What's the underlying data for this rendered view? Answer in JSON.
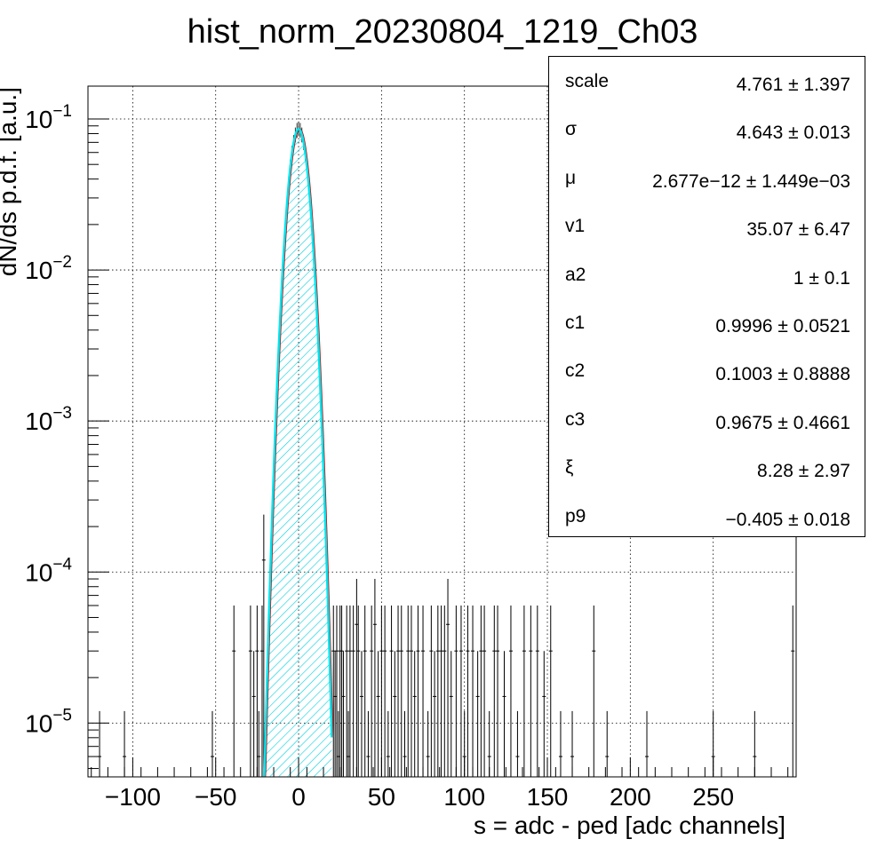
{
  "chart_data": {
    "type": "histogram",
    "title": "hist_norm_20230804_1219_Ch03",
    "xlabel": "s = adc - ped [adc channels]",
    "ylabel": "dN/ds p.d.f. [a.u.]",
    "xlim": [
      -127,
      300
    ],
    "ylim": [
      4.4e-06,
      0.165
    ],
    "yscale": "log",
    "grid": true,
    "xticks": [
      -100,
      -50,
      0,
      50,
      100,
      150,
      200,
      250
    ],
    "xtick_labels": [
      "−100",
      "−50",
      "0",
      "50",
      "100",
      "150",
      "200",
      "250"
    ],
    "yticks": [
      {
        "value": 0.1,
        "base": "10",
        "exp": "−1"
      },
      {
        "value": 0.01,
        "base": "10",
        "exp": "−2"
      },
      {
        "value": 0.001,
        "base": "10",
        "exp": "−3"
      },
      {
        "value": 0.0001,
        "base": "10",
        "exp": "−4"
      },
      {
        "value": 1e-05,
        "base": "10",
        "exp": "−5"
      }
    ],
    "histogram_peak": {
      "mu": 0.0,
      "sigma": 4.643,
      "amplitude": 0.086,
      "x_min": -21,
      "x_max": 20
    },
    "fit_curve_color": "#00e5ee",
    "secondary_curve_color": "#cc0000",
    "hatch_color": "#00d0e0",
    "tail_points": [
      [
        -120,
        6e-06
      ],
      [
        -105,
        6e-06
      ],
      [
        -52,
        6e-06
      ],
      [
        -39,
        3e-05
      ],
      [
        -29,
        3e-05
      ],
      [
        -27,
        1.5e-05
      ],
      [
        -25,
        3e-05
      ],
      [
        -24,
        6e-06
      ],
      [
        -22,
        3e-05
      ],
      [
        -21,
        0.00012
      ],
      [
        21,
        3e-05
      ],
      [
        22,
        1.5e-05
      ],
      [
        23,
        3e-05
      ],
      [
        24,
        6e-06
      ],
      [
        25,
        3e-05
      ],
      [
        26,
        3e-05
      ],
      [
        27,
        1.5e-05
      ],
      [
        29,
        3e-05
      ],
      [
        30,
        6e-06
      ],
      [
        31,
        3e-05
      ],
      [
        33,
        3e-05
      ],
      [
        35,
        4.5e-05
      ],
      [
        36,
        3e-05
      ],
      [
        38,
        1.5e-05
      ],
      [
        40,
        3e-05
      ],
      [
        42,
        6e-06
      ],
      [
        44,
        3e-05
      ],
      [
        46,
        4.5e-05
      ],
      [
        48,
        1.5e-05
      ],
      [
        50,
        3e-05
      ],
      [
        52,
        3e-05
      ],
      [
        54,
        6e-06
      ],
      [
        56,
        3e-05
      ],
      [
        58,
        1.5e-05
      ],
      [
        60,
        3e-05
      ],
      [
        62,
        3e-05
      ],
      [
        64,
        6e-06
      ],
      [
        66,
        3e-05
      ],
      [
        68,
        3e-05
      ],
      [
        70,
        1.5e-05
      ],
      [
        72,
        3e-05
      ],
      [
        75,
        3e-05
      ],
      [
        78,
        6e-06
      ],
      [
        80,
        3e-05
      ],
      [
        82,
        1.5e-05
      ],
      [
        84,
        3e-05
      ],
      [
        86,
        3e-05
      ],
      [
        88,
        3e-05
      ],
      [
        90,
        4.5e-05
      ],
      [
        92,
        1.5e-05
      ],
      [
        95,
        3e-05
      ],
      [
        98,
        3e-05
      ],
      [
        100,
        6e-06
      ],
      [
        102,
        3e-05
      ],
      [
        105,
        3e-05
      ],
      [
        108,
        1.5e-05
      ],
      [
        110,
        3e-05
      ],
      [
        112,
        3e-05
      ],
      [
        115,
        6e-06
      ],
      [
        118,
        3e-05
      ],
      [
        120,
        3e-05
      ],
      [
        124,
        1.5e-05
      ],
      [
        128,
        3e-05
      ],
      [
        132,
        6e-06
      ],
      [
        136,
        3e-05
      ],
      [
        140,
        3e-05
      ],
      [
        144,
        3e-05
      ],
      [
        148,
        1.5e-05
      ],
      [
        152,
        3e-05
      ],
      [
        158,
        6e-06
      ],
      [
        165,
        6e-06
      ],
      [
        178,
        3e-05
      ],
      [
        186,
        6e-06
      ],
      [
        210,
        6e-06
      ],
      [
        250,
        6e-06
      ],
      [
        275,
        6e-06
      ],
      [
        298,
        3e-05
      ]
    ]
  },
  "stats": [
    {
      "name": "scale",
      "value": "4.761 ± 1.397"
    },
    {
      "name": "σ",
      "value": "4.643 ± 0.013"
    },
    {
      "name": "μ",
      "value": "2.677e−12 ± 1.449e−03"
    },
    {
      "name": "v1",
      "value": "35.07 ± 6.47"
    },
    {
      "name": "a2",
      "value": "1 ± 0.1"
    },
    {
      "name": "c1",
      "value": "0.9996 ± 0.0521"
    },
    {
      "name": "c2",
      "value": "0.1003 ± 0.8888"
    },
    {
      "name": "c3",
      "value": "0.9675 ± 0.4661"
    },
    {
      "name": "ξ",
      "value": "8.28 ± 2.97"
    },
    {
      "name": "p9",
      "value": "−0.405 ± 0.018"
    }
  ]
}
